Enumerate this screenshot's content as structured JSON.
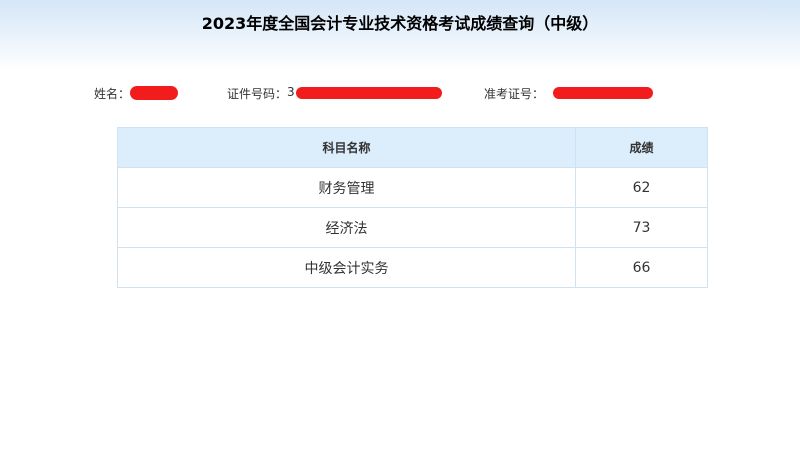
{
  "header": {
    "title": "2023年度全国会计专业技术资格考试成绩查询（中级）"
  },
  "info": {
    "name_label": "姓名：",
    "id_label": "证件号码：",
    "id_visible_prefix": "3",
    "ticket_label": "准考证号："
  },
  "redaction_color": "#f21c1c",
  "table": {
    "headers": [
      "科目名称",
      "成绩"
    ],
    "rows": [
      {
        "subject": "财务管理",
        "score": "62"
      },
      {
        "subject": "经济法",
        "score": "73"
      },
      {
        "subject": "中级会计实务",
        "score": "66"
      }
    ]
  }
}
